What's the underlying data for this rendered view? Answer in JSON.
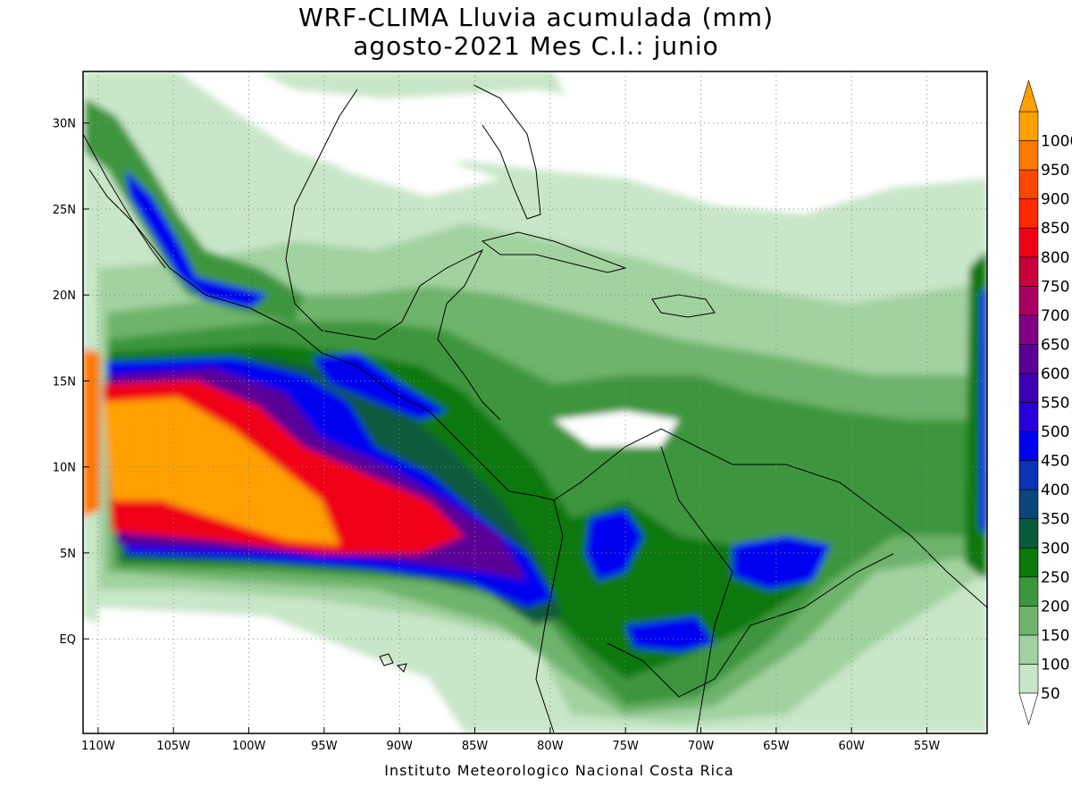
{
  "title": {
    "line1": "WRF-CLIMA Lluvia acumulada (mm)",
    "line2": "agosto-2021 Mes C.I.: junio"
  },
  "credit": "Instituto Meteorologico Nacional Costa Rica",
  "map": {
    "lon_range": [
      -111,
      -51
    ],
    "lat_range": [
      -5.5,
      33
    ],
    "lon_ticks": [
      {
        "value": -110,
        "label": "110W"
      },
      {
        "value": -105,
        "label": "105W"
      },
      {
        "value": -100,
        "label": "100W"
      },
      {
        "value": -95,
        "label": "95W"
      },
      {
        "value": -90,
        "label": "90W"
      },
      {
        "value": -85,
        "label": "85W"
      },
      {
        "value": -80,
        "label": "80W"
      },
      {
        "value": -75,
        "label": "75W"
      },
      {
        "value": -70,
        "label": "70W"
      },
      {
        "value": -65,
        "label": "65W"
      },
      {
        "value": -60,
        "label": "60W"
      },
      {
        "value": -55,
        "label": "55W"
      }
    ],
    "lat_ticks": [
      {
        "value": 30,
        "label": "30N"
      },
      {
        "value": 25,
        "label": "25N"
      },
      {
        "value": 20,
        "label": "20N"
      },
      {
        "value": 15,
        "label": "15N"
      },
      {
        "value": 10,
        "label": "10N"
      },
      {
        "value": 5,
        "label": "5N"
      },
      {
        "value": 0,
        "label": "EQ"
      }
    ],
    "grid": true
  },
  "colorbar": {
    "levels": [
      {
        "label": "50",
        "color": "#c8e6c8"
      },
      {
        "label": "100",
        "color": "#a2d2a0"
      },
      {
        "label": "150",
        "color": "#6eb46c"
      },
      {
        "label": "200",
        "color": "#3c963c"
      },
      {
        "label": "250",
        "color": "#087808"
      },
      {
        "label": "300",
        "color": "#0a5a3c"
      },
      {
        "label": "350",
        "color": "#0a4678"
      },
      {
        "label": "400",
        "color": "#0a32b4"
      },
      {
        "label": "450",
        "color": "#0000f0"
      },
      {
        "label": "500",
        "color": "#2800dc"
      },
      {
        "label": "550",
        "color": "#3c00b4"
      },
      {
        "label": "600",
        "color": "#5a0096"
      },
      {
        "label": "650",
        "color": "#820082"
      },
      {
        "label": "700",
        "color": "#aa0064"
      },
      {
        "label": "750",
        "color": "#c8003c"
      },
      {
        "label": "800",
        "color": "#f00014"
      },
      {
        "label": "850",
        "color": "#ff2800"
      },
      {
        "label": "900",
        "color": "#ff4600"
      },
      {
        "label": "950",
        "color": "#ff7800"
      },
      {
        "label": "1000",
        "color": "#ffa000"
      }
    ]
  }
}
